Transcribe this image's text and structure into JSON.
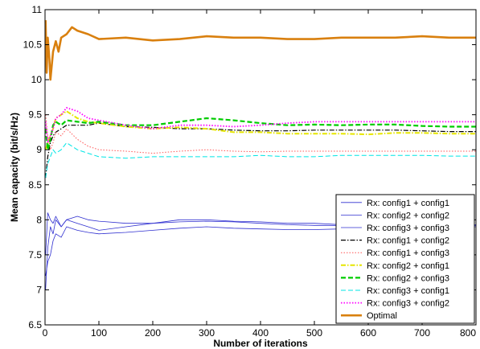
{
  "chart_data": {
    "type": "line",
    "title": "",
    "xlabel": "Number of iterations",
    "ylabel": "Mean capacity (bit/s/Hz)",
    "xlim": [
      0,
      800
    ],
    "ylim": [
      6.5,
      11
    ],
    "xticks": [
      0,
      100,
      200,
      300,
      400,
      500,
      600,
      700,
      800
    ],
    "yticks": [
      6.5,
      7,
      7.5,
      8,
      8.5,
      9,
      9.5,
      10,
      10.5,
      11
    ],
    "grid": false,
    "legend_position": "bottom-right",
    "series": [
      {
        "name": "Rx: config1 + config1",
        "color": "#2f2fd0",
        "style": "solid",
        "width": 0.8,
        "x": [
          1,
          5,
          10,
          15,
          20,
          30,
          40,
          60,
          80,
          100,
          150,
          200,
          250,
          300,
          350,
          400,
          450,
          500,
          550,
          600,
          650,
          700,
          750,
          800
        ],
        "y": [
          7.0,
          7.6,
          7.9,
          7.8,
          8.0,
          7.9,
          8.0,
          7.95,
          7.9,
          7.85,
          7.9,
          7.95,
          8.0,
          8.0,
          7.98,
          7.97,
          7.95,
          7.95,
          7.93,
          7.93,
          7.92,
          7.92,
          7.92,
          7.92
        ]
      },
      {
        "name": "Rx: config2 + config2",
        "color": "#2f2fd0",
        "style": "solid",
        "width": 0.8,
        "x": [
          1,
          5,
          10,
          15,
          20,
          30,
          40,
          60,
          80,
          100,
          150,
          200,
          250,
          300,
          350,
          400,
          450,
          500,
          550,
          600,
          650,
          700,
          750,
          800
        ],
        "y": [
          7.2,
          7.4,
          7.5,
          7.7,
          7.8,
          7.75,
          7.9,
          7.85,
          7.82,
          7.8,
          7.82,
          7.85,
          7.88,
          7.9,
          7.88,
          7.87,
          7.86,
          7.86,
          7.87,
          7.88,
          7.9,
          7.9,
          7.9,
          7.9
        ]
      },
      {
        "name": "Rx: config3 + config3",
        "color": "#2f2fd0",
        "style": "solid",
        "width": 0.8,
        "x": [
          1,
          5,
          10,
          15,
          20,
          30,
          40,
          60,
          80,
          100,
          150,
          200,
          250,
          300,
          350,
          400,
          450,
          500,
          550,
          600,
          650,
          700,
          750,
          800
        ],
        "y": [
          7.5,
          8.1,
          8.0,
          7.95,
          8.05,
          7.9,
          8.0,
          8.05,
          8.0,
          7.98,
          7.95,
          7.95,
          7.97,
          7.98,
          7.97,
          7.95,
          7.93,
          7.92,
          7.92,
          7.92,
          7.92,
          7.93,
          7.93,
          7.93
        ]
      },
      {
        "name": "Rx: config1 + config2",
        "color": "#000000",
        "style": "dashdot",
        "width": 1.2,
        "x": [
          1,
          5,
          10,
          15,
          20,
          30,
          40,
          60,
          80,
          100,
          150,
          200,
          250,
          300,
          350,
          400,
          450,
          500,
          550,
          600,
          650,
          700,
          750,
          800
        ],
        "y": [
          8.6,
          8.9,
          9.1,
          9.2,
          9.25,
          9.3,
          9.35,
          9.35,
          9.35,
          9.38,
          9.33,
          9.32,
          9.3,
          9.3,
          9.28,
          9.27,
          9.27,
          9.28,
          9.28,
          9.28,
          9.28,
          9.27,
          9.26,
          9.26
        ]
      },
      {
        "name": "Rx: config1 + config3",
        "color": "#ff5555",
        "style": "dotted",
        "width": 1.0,
        "x": [
          1,
          5,
          10,
          15,
          20,
          30,
          40,
          60,
          80,
          100,
          150,
          200,
          250,
          300,
          350,
          400,
          450,
          500,
          550,
          600,
          650,
          700,
          750,
          800
        ],
        "y": [
          9.5,
          9.2,
          9.0,
          9.1,
          9.25,
          9.2,
          9.3,
          9.15,
          9.05,
          9.0,
          8.98,
          8.95,
          8.98,
          9.0,
          8.98,
          8.97,
          8.98,
          8.98,
          8.98,
          8.98,
          8.98,
          8.98,
          8.98,
          8.98
        ]
      },
      {
        "name": "Rx: config2 + config1",
        "color": "#e6e600",
        "style": "dashdot",
        "width": 2.0,
        "x": [
          1,
          5,
          10,
          15,
          20,
          30,
          40,
          60,
          80,
          100,
          150,
          200,
          250,
          300,
          350,
          400,
          450,
          500,
          550,
          600,
          650,
          700,
          750,
          800
        ],
        "y": [
          9.0,
          9.1,
          9.2,
          9.3,
          9.45,
          9.5,
          9.55,
          9.45,
          9.4,
          9.38,
          9.33,
          9.3,
          9.32,
          9.3,
          9.25,
          9.25,
          9.23,
          9.23,
          9.23,
          9.22,
          9.24,
          9.24,
          9.23,
          9.23
        ]
      },
      {
        "name": "Rx: config2 + config3",
        "color": "#00cc00",
        "style": "dashed",
        "width": 2.2,
        "x": [
          1,
          5,
          10,
          15,
          20,
          30,
          40,
          60,
          80,
          100,
          150,
          200,
          250,
          300,
          350,
          400,
          450,
          500,
          550,
          600,
          650,
          700,
          750,
          800
        ],
        "y": [
          9.3,
          9.0,
          9.15,
          9.35,
          9.4,
          9.35,
          9.42,
          9.4,
          9.38,
          9.4,
          9.35,
          9.35,
          9.4,
          9.45,
          9.42,
          9.38,
          9.35,
          9.36,
          9.35,
          9.36,
          9.36,
          9.34,
          9.33,
          9.33
        ]
      },
      {
        "name": "Rx: config3 + config1",
        "color": "#00e5e5",
        "style": "dashed",
        "width": 1.0,
        "x": [
          1,
          5,
          10,
          15,
          20,
          30,
          40,
          60,
          80,
          100,
          150,
          200,
          250,
          300,
          350,
          400,
          450,
          500,
          550,
          600,
          650,
          700,
          750,
          800
        ],
        "y": [
          8.6,
          8.8,
          8.9,
          9.0,
          8.95,
          9.0,
          9.1,
          9.0,
          8.95,
          8.9,
          8.88,
          8.9,
          8.9,
          8.9,
          8.9,
          8.92,
          8.9,
          8.9,
          8.92,
          8.92,
          8.92,
          8.92,
          8.91,
          8.91
        ]
      },
      {
        "name": "Rx: config3 + config2",
        "color": "#ff00ff",
        "style": "dotted",
        "width": 1.8,
        "x": [
          1,
          5,
          10,
          15,
          20,
          30,
          40,
          60,
          80,
          100,
          150,
          200,
          250,
          300,
          350,
          400,
          450,
          500,
          550,
          600,
          650,
          700,
          750,
          800
        ],
        "y": [
          9.4,
          9.1,
          9.2,
          9.3,
          9.45,
          9.5,
          9.6,
          9.55,
          9.45,
          9.42,
          9.35,
          9.3,
          9.35,
          9.35,
          9.33,
          9.35,
          9.38,
          9.4,
          9.4,
          9.4,
          9.4,
          9.4,
          9.4,
          9.4
        ]
      },
      {
        "name": "Optimal",
        "color": "#d9800f",
        "style": "solid",
        "width": 2.6,
        "x": [
          1,
          3,
          5,
          8,
          10,
          15,
          20,
          25,
          30,
          40,
          50,
          60,
          80,
          100,
          150,
          200,
          250,
          300,
          350,
          400,
          450,
          500,
          550,
          600,
          650,
          700,
          750,
          800
        ],
        "y": [
          10.85,
          10.1,
          10.6,
          10.3,
          10.0,
          10.4,
          10.55,
          10.4,
          10.6,
          10.65,
          10.75,
          10.7,
          10.65,
          10.58,
          10.6,
          10.56,
          10.58,
          10.62,
          10.6,
          10.6,
          10.58,
          10.58,
          10.6,
          10.6,
          10.6,
          10.62,
          10.6,
          10.6
        ]
      }
    ]
  }
}
